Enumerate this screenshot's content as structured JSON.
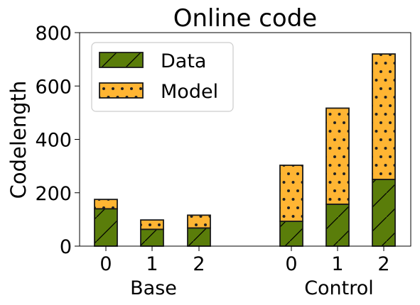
{
  "chart_data": {
    "type": "bar",
    "stacked": true,
    "title": "Online code",
    "ylabel": "Codelength",
    "ylim": [
      0,
      800
    ],
    "yticks": [
      0,
      200,
      400,
      600,
      800
    ],
    "groups": [
      {
        "name": "Base",
        "categories": [
          "0",
          "1",
          "2"
        ]
      },
      {
        "name": "Control",
        "categories": [
          "0",
          "1",
          "2"
        ]
      }
    ],
    "series": [
      {
        "name": "Data",
        "color": "#5a7d0a",
        "pattern": "hatch-diagonal",
        "values": [
          140,
          63,
          68,
          93,
          157,
          250
        ]
      },
      {
        "name": "Model",
        "color": "#ffb533",
        "pattern": "dots",
        "values": [
          35,
          35,
          48,
          210,
          360,
          470
        ]
      }
    ],
    "legend": {
      "placement": "top-left",
      "entries": [
        "Data",
        "Model"
      ]
    },
    "grid": false
  }
}
